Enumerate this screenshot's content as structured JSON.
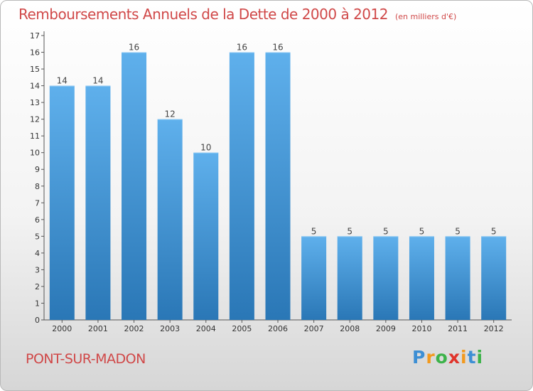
{
  "title": "Remboursements Annuels de la Dette de 2000 à 2012",
  "subtitle": "(en milliers d'€)",
  "commune": "PONT-SUR-MADON",
  "logo": {
    "letters": [
      "P",
      "r",
      "o",
      "x",
      "i",
      "t",
      "i"
    ],
    "colors": [
      "#3d8fd4",
      "#f29a1e",
      "#3db34a",
      "#e0342b",
      "#f29a1e",
      "#3d8fd4",
      "#3db34a"
    ]
  },
  "colors": {
    "title": "#d04848",
    "bar_light": "#5fb0ec",
    "bar_dark": "#2a77b6",
    "axis": "#555555"
  },
  "chart_data": {
    "type": "bar",
    "title": "Remboursements Annuels de la Dette de 2000 à 2012",
    "subtitle": "(en milliers d'€)",
    "xlabel": "",
    "ylabel": "",
    "categories": [
      "2000",
      "2001",
      "2002",
      "2003",
      "2004",
      "2005",
      "2006",
      "2007",
      "2008",
      "2009",
      "2010",
      "2011",
      "2012"
    ],
    "values": [
      14,
      14,
      16,
      12,
      10,
      16,
      16,
      5,
      5,
      5,
      5,
      5,
      5
    ],
    "ylim": [
      0,
      17
    ],
    "yticks": [
      "0",
      "1",
      "2",
      "3",
      "4",
      "5",
      "6",
      "7",
      "8",
      "9",
      "10",
      "11",
      "12",
      "13",
      "14",
      "15",
      "16",
      "17"
    ],
    "grid": false,
    "legend": "none"
  }
}
